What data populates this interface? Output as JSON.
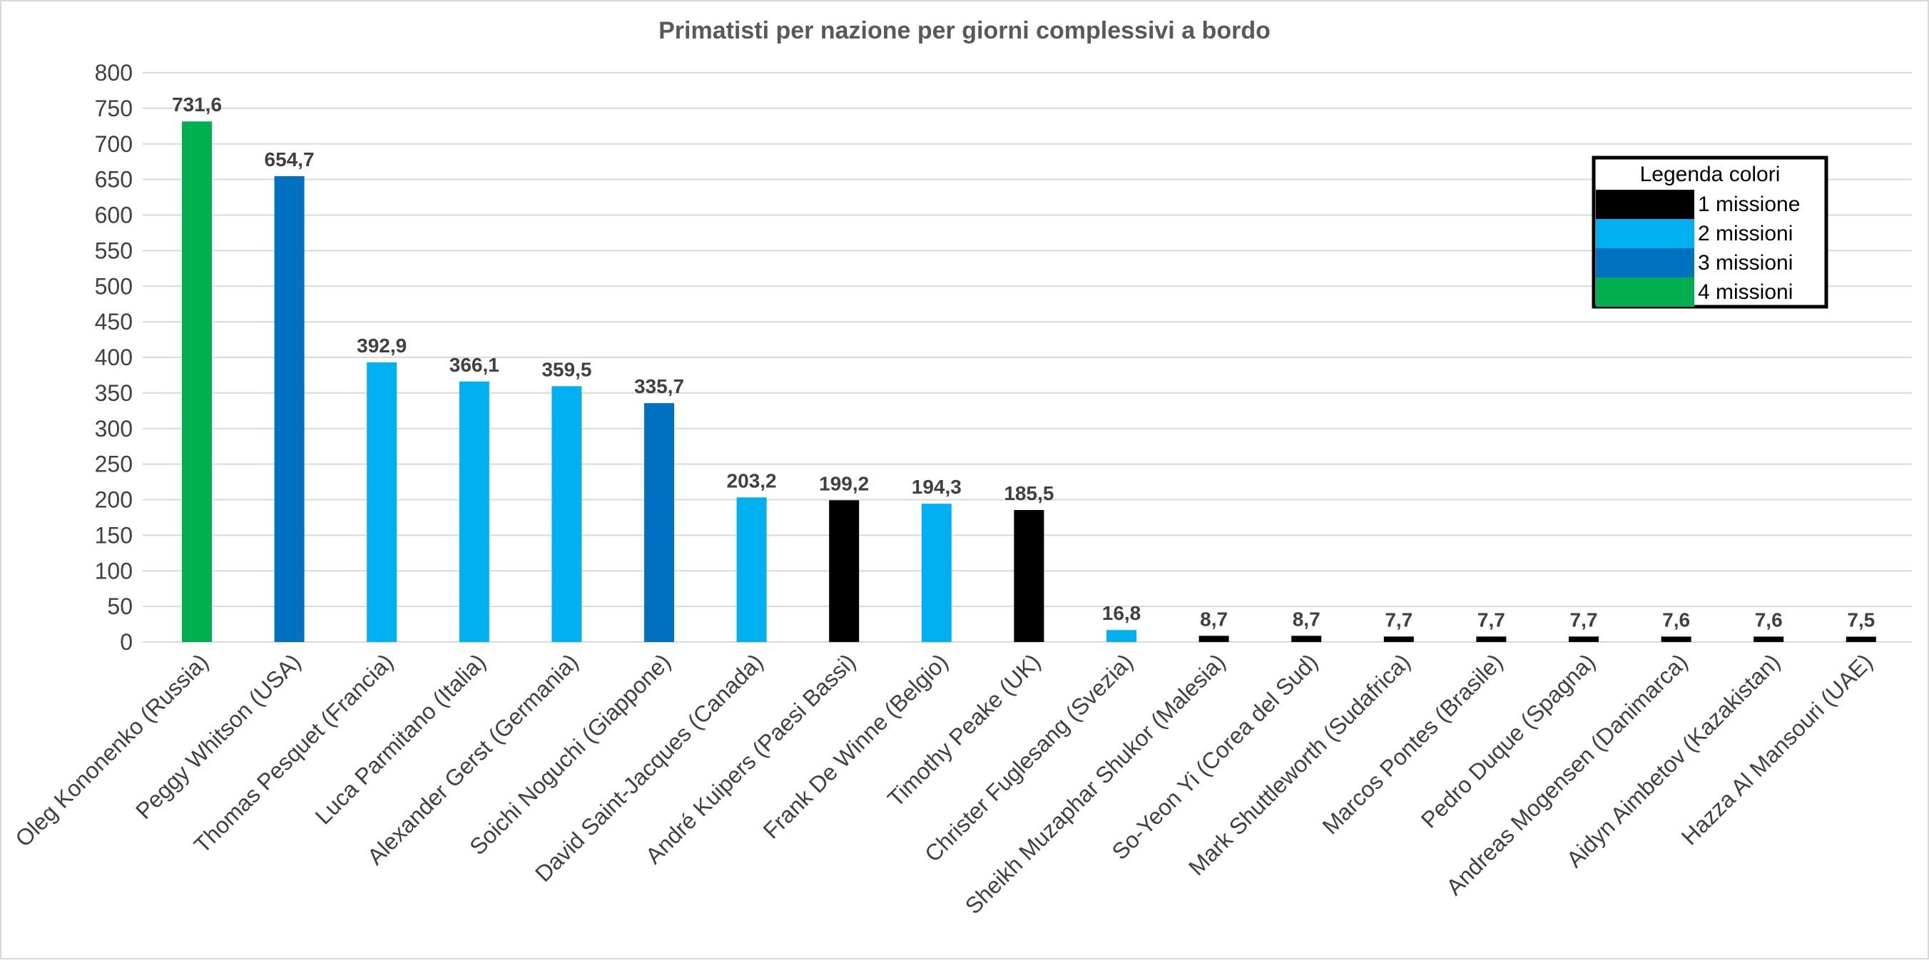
{
  "chart_data": {
    "type": "bar",
    "title": "Primatisti per nazione per giorni complessivi a bordo",
    "xlabel": "",
    "ylabel": "",
    "ylim": [
      0,
      800
    ],
    "yticks": [
      0,
      50,
      100,
      150,
      200,
      250,
      300,
      350,
      400,
      450,
      500,
      550,
      600,
      650,
      700,
      750,
      800
    ],
    "grid": true,
    "categories": [
      "Oleg Kononenko (Russia)",
      "Peggy Whitson (USA)",
      "Thomas Pesquet (Francia)",
      "Luca Parmitano (Italia)",
      "Alexander Gerst (Germania)",
      "Soichi Noguchi (Giappone)",
      "David Saint-Jacques (Canada)",
      "André Kuipers (Paesi Bassi)",
      "Frank De Winne (Belgio)",
      "Timothy Peake (UK)",
      "Christer Fuglesang (Svezia)",
      "Sheikh Muzaphar Shukor (Malesia)",
      "So-Yeon Yi (Corea del Sud)",
      "Mark Shuttleworth (Sudafrica)",
      "Marcos Pontes (Brasile)",
      "Pedro Duque (Spagna)",
      "Andreas Mogensen (Danimarca)",
      "Aidyn Aimbetov (Kazakistan)",
      "Hazza Al Mansouri (UAE)"
    ],
    "values": [
      731.6,
      654.7,
      392.9,
      366.1,
      359.5,
      335.7,
      203.2,
      199.2,
      194.3,
      185.5,
      16.8,
      8.7,
      8.7,
      7.7,
      7.7,
      7.7,
      7.6,
      7.6,
      7.5
    ],
    "data_labels": [
      "731,6",
      "654,7",
      "392,9",
      "366,1",
      "359,5",
      "335,7",
      "203,2",
      "199,2",
      "194,3",
      "185,5",
      "16,8",
      "8,7",
      "8,7",
      "7,7",
      "7,7",
      "7,7",
      "7,6",
      "7,6",
      "7,5"
    ],
    "missions": [
      4,
      3,
      2,
      2,
      2,
      3,
      2,
      1,
      2,
      1,
      2,
      1,
      1,
      1,
      1,
      1,
      1,
      1,
      1
    ],
    "mission_colors": {
      "1": "#000000",
      "2": "#00b0f0",
      "3": "#0070c0",
      "4": "#00b050"
    },
    "legend": {
      "title": "Legenda colori",
      "placement": "top-right",
      "entries": [
        {
          "label": "1 missione",
          "color": "#000000"
        },
        {
          "label": "2 missioni",
          "color": "#00b0f0"
        },
        {
          "label": "3 missioni",
          "color": "#0070c0"
        },
        {
          "label": "4 missioni",
          "color": "#00b050"
        }
      ]
    },
    "gridline_color": "#d9d9d9"
  }
}
